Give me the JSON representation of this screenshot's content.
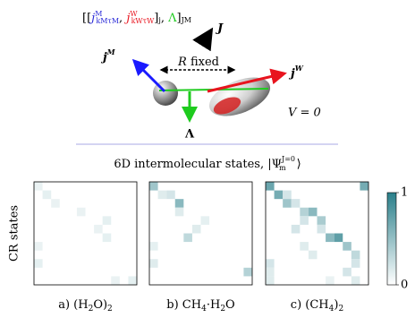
{
  "diagram": {
    "formula": [
      "[[",
      "j",
      "M",
      "kMτM",
      ", ",
      "j",
      "W",
      "kWτW",
      "]",
      "j",
      ", ",
      "Λ",
      "]",
      "JM"
    ],
    "J": "J",
    "jM": [
      "j",
      "M"
    ],
    "jW": [
      "j",
      "W"
    ],
    "R_fixed": [
      "R",
      " fixed"
    ],
    "V": "V = 0",
    "Lambda": "Λ",
    "header": [
      "6D intermolecular states, |Ψ",
      "J=0",
      "m",
      "⟩"
    ]
  },
  "colorbar": {
    "lim": [
      0,
      1
    ],
    "ticks": [
      0,
      1
    ],
    "colors": [
      "#ffffff",
      "#2a7f8a"
    ]
  },
  "chart_data": [
    {
      "type": "heatmap",
      "caption": [
        "a) (H",
        "2",
        "O)",
        "2"
      ],
      "ylabel": "CR states",
      "clim": [
        0,
        1
      ],
      "values": [
        [
          0.1,
          0,
          0,
          0,
          0,
          0,
          0,
          0,
          0,
          0,
          0,
          0
        ],
        [
          0,
          0.12,
          0,
          0,
          0,
          0,
          0,
          0,
          0,
          0,
          0,
          0
        ],
        [
          0,
          0,
          0.1,
          0,
          0,
          0,
          0,
          0,
          0,
          0,
          0,
          0
        ],
        [
          0,
          0,
          0,
          0,
          0,
          0.1,
          0,
          0,
          0,
          0,
          0,
          0
        ],
        [
          0,
          0,
          0,
          0,
          0,
          0,
          0,
          0,
          0.12,
          0,
          0,
          0
        ],
        [
          0,
          0,
          0,
          0,
          0,
          0,
          0,
          0.1,
          0,
          0,
          0,
          0
        ],
        [
          0,
          0,
          0,
          0,
          0,
          0,
          0,
          0,
          0.12,
          0,
          0,
          0
        ],
        [
          0.1,
          0,
          0,
          0,
          0,
          0,
          0,
          0,
          0,
          0,
          0,
          0
        ],
        [
          0,
          0,
          0,
          0,
          0,
          0,
          0,
          0,
          0,
          0,
          0,
          0
        ],
        [
          0.12,
          0,
          0,
          0,
          0,
          0,
          0,
          0,
          0,
          0,
          0,
          0
        ],
        [
          0,
          0,
          0,
          0,
          0,
          0,
          0,
          0,
          0,
          0,
          0,
          0
        ],
        [
          0,
          0,
          0,
          0,
          0,
          0,
          0,
          0,
          0,
          0.1,
          0,
          0.12
        ]
      ]
    },
    {
      "type": "heatmap",
      "caption": [
        "b) CH",
        "4",
        "·H",
        "2",
        "O"
      ],
      "clim": [
        0,
        1
      ],
      "values": [
        [
          0.45,
          0,
          0,
          0,
          0,
          0,
          0,
          0,
          0,
          0,
          0,
          0
        ],
        [
          0,
          0.15,
          0.2,
          0,
          0,
          0,
          0,
          0,
          0,
          0,
          0,
          0
        ],
        [
          0,
          0,
          0,
          0.55,
          0,
          0,
          0,
          0,
          0,
          0,
          0,
          0
        ],
        [
          0,
          0,
          0,
          0.15,
          0,
          0,
          0,
          0,
          0,
          0,
          0,
          0
        ],
        [
          0,
          0,
          0,
          0,
          0,
          0,
          0.12,
          0,
          0,
          0,
          0,
          0
        ],
        [
          0,
          0,
          0,
          0,
          0,
          0.15,
          0,
          0,
          0,
          0,
          0,
          0
        ],
        [
          0,
          0,
          0,
          0,
          0.3,
          0,
          0,
          0,
          0,
          0,
          0,
          0
        ],
        [
          0.12,
          0,
          0,
          0,
          0,
          0,
          0,
          0,
          0,
          0,
          0,
          0
        ],
        [
          0,
          0,
          0,
          0,
          0,
          0,
          0,
          0,
          0,
          0,
          0,
          0
        ],
        [
          0.15,
          0,
          0,
          0,
          0,
          0,
          0,
          0,
          0,
          0,
          0,
          0
        ],
        [
          0,
          0,
          0,
          0,
          0,
          0,
          0,
          0,
          0,
          0,
          0,
          0.35
        ],
        [
          0,
          0,
          0,
          0,
          0,
          0,
          0,
          0,
          0,
          0,
          0,
          0
        ]
      ]
    },
    {
      "type": "heatmap",
      "caption": [
        "c) (CH",
        "4",
        ")",
        "2"
      ],
      "clim": [
        0,
        1
      ],
      "values": [
        [
          0.7,
          0,
          0,
          0,
          0,
          0,
          0,
          0,
          0,
          0,
          0,
          0.65
        ],
        [
          0,
          0.65,
          0.2,
          0,
          0,
          0,
          0,
          0,
          0,
          0,
          0,
          0
        ],
        [
          0,
          0,
          0.45,
          0.2,
          0,
          0,
          0,
          0,
          0,
          0,
          0,
          0
        ],
        [
          0,
          0,
          0,
          0,
          0.35,
          0.55,
          0,
          0,
          0,
          0,
          0,
          0
        ],
        [
          0,
          0,
          0,
          0,
          0.2,
          0,
          0.4,
          0,
          0,
          0,
          0,
          0
        ],
        [
          0,
          0,
          0,
          0.2,
          0,
          0,
          0.2,
          0,
          0,
          0,
          0,
          0
        ],
        [
          0,
          0,
          0,
          0,
          0,
          0,
          0,
          0.55,
          0.75,
          0,
          0,
          0
        ],
        [
          0,
          0,
          0,
          0,
          0.15,
          0,
          0,
          0,
          0,
          0.45,
          0,
          0
        ],
        [
          0,
          0,
          0,
          0,
          0,
          0.15,
          0,
          0,
          0,
          0,
          0.3,
          0
        ],
        [
          0.2,
          0,
          0,
          0,
          0,
          0,
          0,
          0,
          0,
          0,
          0.2,
          0
        ],
        [
          0.15,
          0,
          0,
          0,
          0,
          0,
          0,
          0,
          0,
          0.2,
          0,
          0
        ],
        [
          0.15,
          0,
          0,
          0,
          0,
          0,
          0,
          0.1,
          0,
          0,
          0.15,
          0
        ]
      ]
    }
  ]
}
